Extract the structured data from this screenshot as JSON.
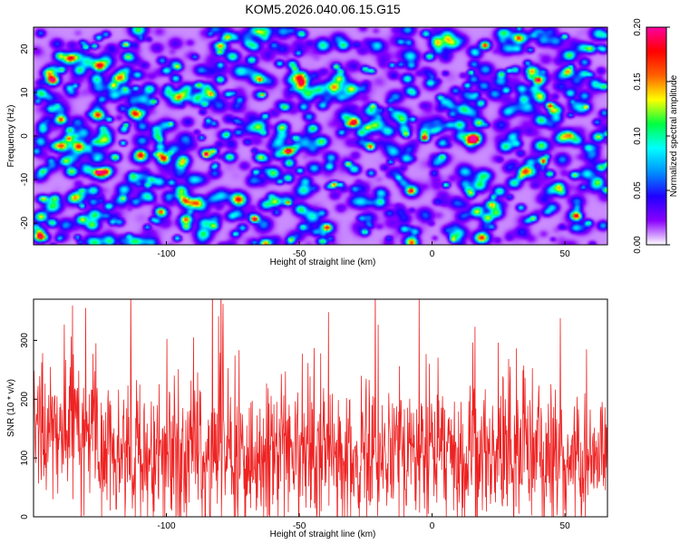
{
  "title": "KOM5.2026.040.06.15.G15",
  "chart_data": [
    {
      "type": "heatmap",
      "xlabel": "Height of straight line (km)",
      "ylabel": "Frequency (Hz)",
      "xlim": [
        -150,
        66
      ],
      "ylim": [
        -25,
        25
      ],
      "xticks": [
        -100,
        -50,
        0,
        50
      ],
      "yticks": [
        -20,
        -10,
        0,
        10,
        20
      ],
      "colorbar": {
        "label": "Normalized spectral amplitude",
        "range": [
          0,
          0.2
        ],
        "ticks": [
          "0.00",
          "0.05",
          "0.10",
          "0.15",
          "0.20"
        ],
        "colors": [
          "#ffffff",
          "#8a00ff",
          "#2000ff",
          "#0090ff",
          "#00ffff",
          "#00ff40",
          "#ffff00",
          "#ff6000",
          "#ff0000",
          "#ff00a0"
        ]
      },
      "hotspots": [
        {
          "x": -143,
          "y": 13,
          "v": 0.19
        },
        {
          "x": -140,
          "y": 4,
          "v": 0.17
        },
        {
          "x": -136,
          "y": -8,
          "v": 0.12
        },
        {
          "x": -132,
          "y": -19,
          "v": 0.13
        },
        {
          "x": -148,
          "y": -23,
          "v": 0.18
        },
        {
          "x": -125,
          "y": 16,
          "v": 0.08
        },
        {
          "x": -58,
          "y": -4,
          "v": 0.09
        },
        {
          "x": -95,
          "y": -12,
          "v": 0.08
        },
        {
          "x": -10,
          "y": -5,
          "v": 0.09
        },
        {
          "x": 62,
          "y": 0,
          "v": 0.11
        },
        {
          "x": 30,
          "y": 0,
          "v": 0.08
        }
      ]
    },
    {
      "type": "line",
      "xlabel": "Height of straight line (km)",
      "ylabel": "SNR (10 * v/v)",
      "xlim": [
        -150,
        66
      ],
      "ylim": [
        0,
        370
      ],
      "xticks": [
        -100,
        -50,
        0,
        50
      ],
      "yticks": [
        0,
        100,
        200,
        300
      ],
      "series": [
        {
          "color": "#ee2222"
        }
      ]
    }
  ]
}
